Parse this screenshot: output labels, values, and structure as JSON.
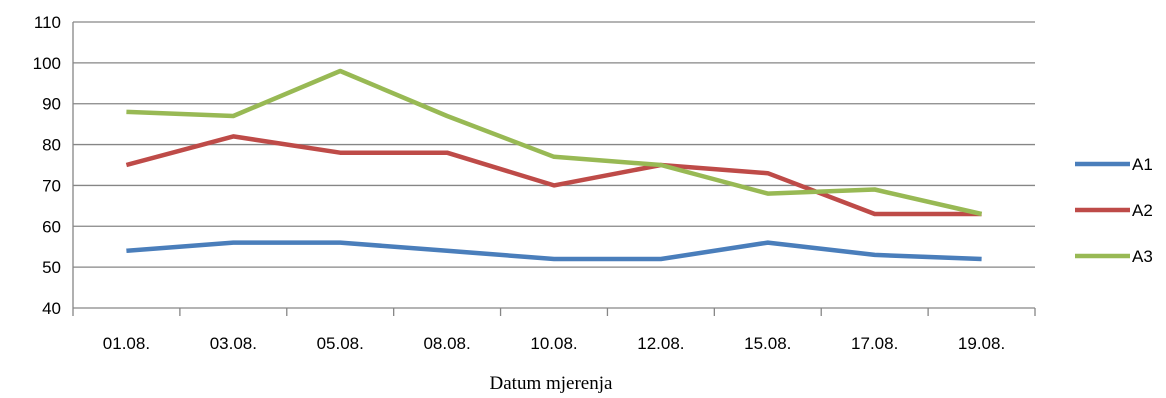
{
  "chart_data": {
    "type": "line",
    "xlabel": "Datum mjerenja",
    "ylabel": "",
    "ylim": [
      40,
      110
    ],
    "yticks": [
      40,
      50,
      60,
      70,
      80,
      90,
      100,
      110
    ],
    "ytick_labels": [
      "40",
      "50",
      "60",
      "70",
      "80",
      "90",
      "100",
      "110"
    ],
    "grid": true,
    "legend_position": "right",
    "categories": [
      "01.08.",
      "03.08.",
      "05.08.",
      "08.08.",
      "10.08.",
      "12.08.",
      "15.08.",
      "17.08.",
      "19.08."
    ],
    "series": [
      {
        "name": "A1",
        "color": "#4a7ebb",
        "values": [
          54,
          56,
          56,
          54,
          52,
          52,
          56,
          53,
          52
        ]
      },
      {
        "name": "A2",
        "color": "#be4b48",
        "values": [
          75,
          82,
          78,
          78,
          70,
          75,
          73,
          63,
          63
        ]
      },
      {
        "name": "A3",
        "color": "#98b954",
        "values": [
          88,
          87,
          98,
          87,
          77,
          75,
          68,
          69,
          63
        ]
      }
    ]
  }
}
